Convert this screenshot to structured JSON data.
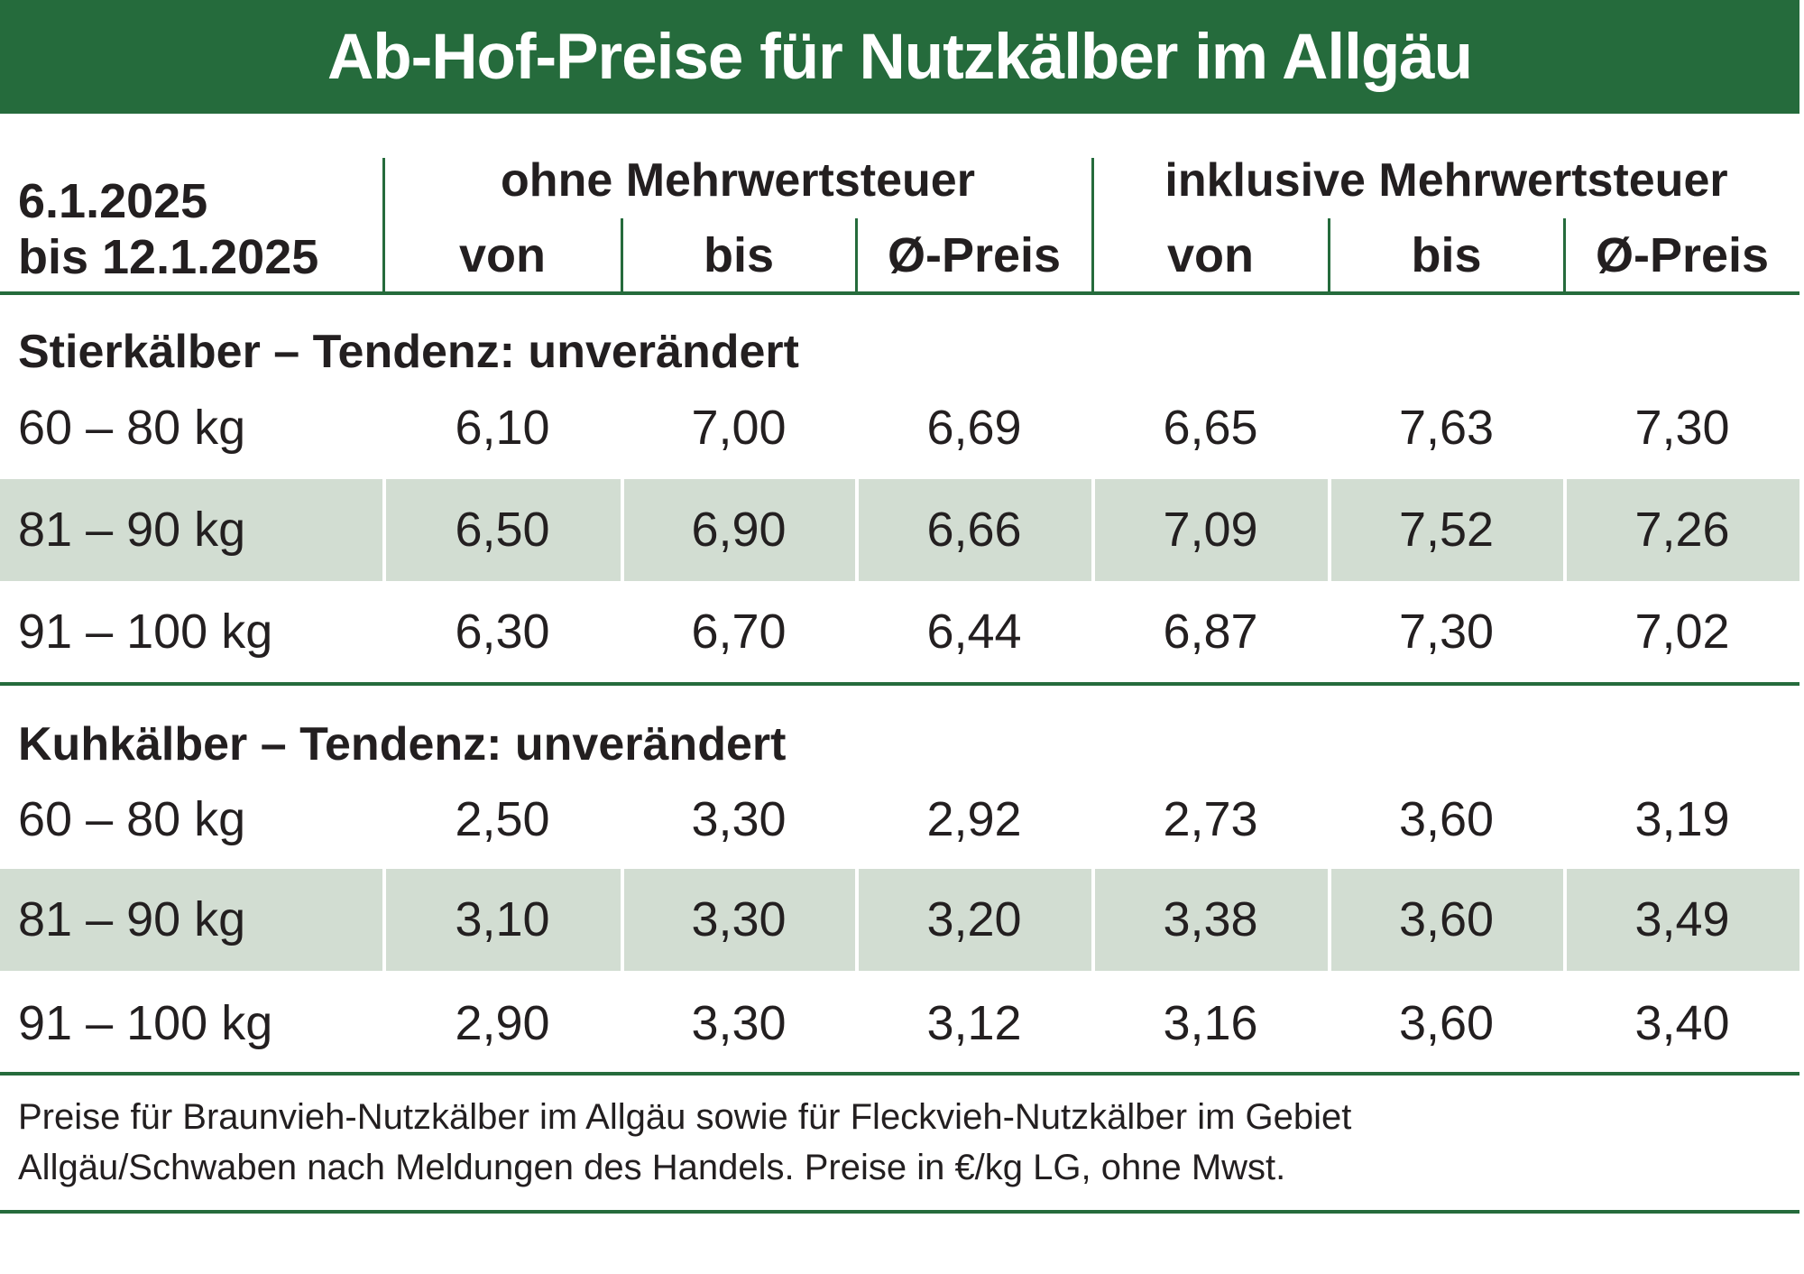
{
  "title": "Ab-Hof-Preise für Nutzkälber im Allgäu",
  "period": {
    "line1": "6.1.2025",
    "line2": "bis 12.1.2025"
  },
  "groups": {
    "without_vat": "ohne Mehrwertsteuer",
    "with_vat": "inklusive Mehrwertsteuer"
  },
  "columns": [
    "von",
    "bis",
    "Ø-Preis",
    "von",
    "bis",
    "Ø-Preis"
  ],
  "sections": [
    {
      "heading": "Stierkälber – Tendenz: unverändert",
      "rows": [
        {
          "label": "60 – 80 kg",
          "values": [
            "6,10",
            "7,00",
            "6,69",
            "6,65",
            "7,63",
            "7,30"
          ]
        },
        {
          "label": "81 – 90 kg",
          "values": [
            "6,50",
            "6,90",
            "6,66",
            "7,09",
            "7,52",
            "7,26"
          ]
        },
        {
          "label": "91 – 100 kg",
          "values": [
            "6,30",
            "6,70",
            "6,44",
            "6,87",
            "7,30",
            "7,02"
          ]
        }
      ]
    },
    {
      "heading": "Kuhkälber – Tendenz: unverändert",
      "rows": [
        {
          "label": "60 – 80 kg",
          "values": [
            "2,50",
            "3,30",
            "2,92",
            "2,73",
            "3,60",
            "3,19"
          ]
        },
        {
          "label": "81 – 90 kg",
          "values": [
            "3,10",
            "3,30",
            "3,20",
            "3,38",
            "3,60",
            "3,49"
          ]
        },
        {
          "label": "91 – 100 kg",
          "values": [
            "2,90",
            "3,30",
            "3,12",
            "3,16",
            "3,60",
            "3,40"
          ]
        }
      ]
    }
  ],
  "footnote": {
    "line1": "Preise für Braunvieh-Nutzkälber im Allgäu sowie für Fleckvieh-Nutzkälber im Gebiet",
    "line2": "Allgäu/Schwaben nach Meldungen des Handels. Preise in €/kg LG, ohne Mwst."
  },
  "colors": {
    "brand_green": "#256b3c",
    "row_shade": "#d2ddd2",
    "text": "#231f20"
  }
}
